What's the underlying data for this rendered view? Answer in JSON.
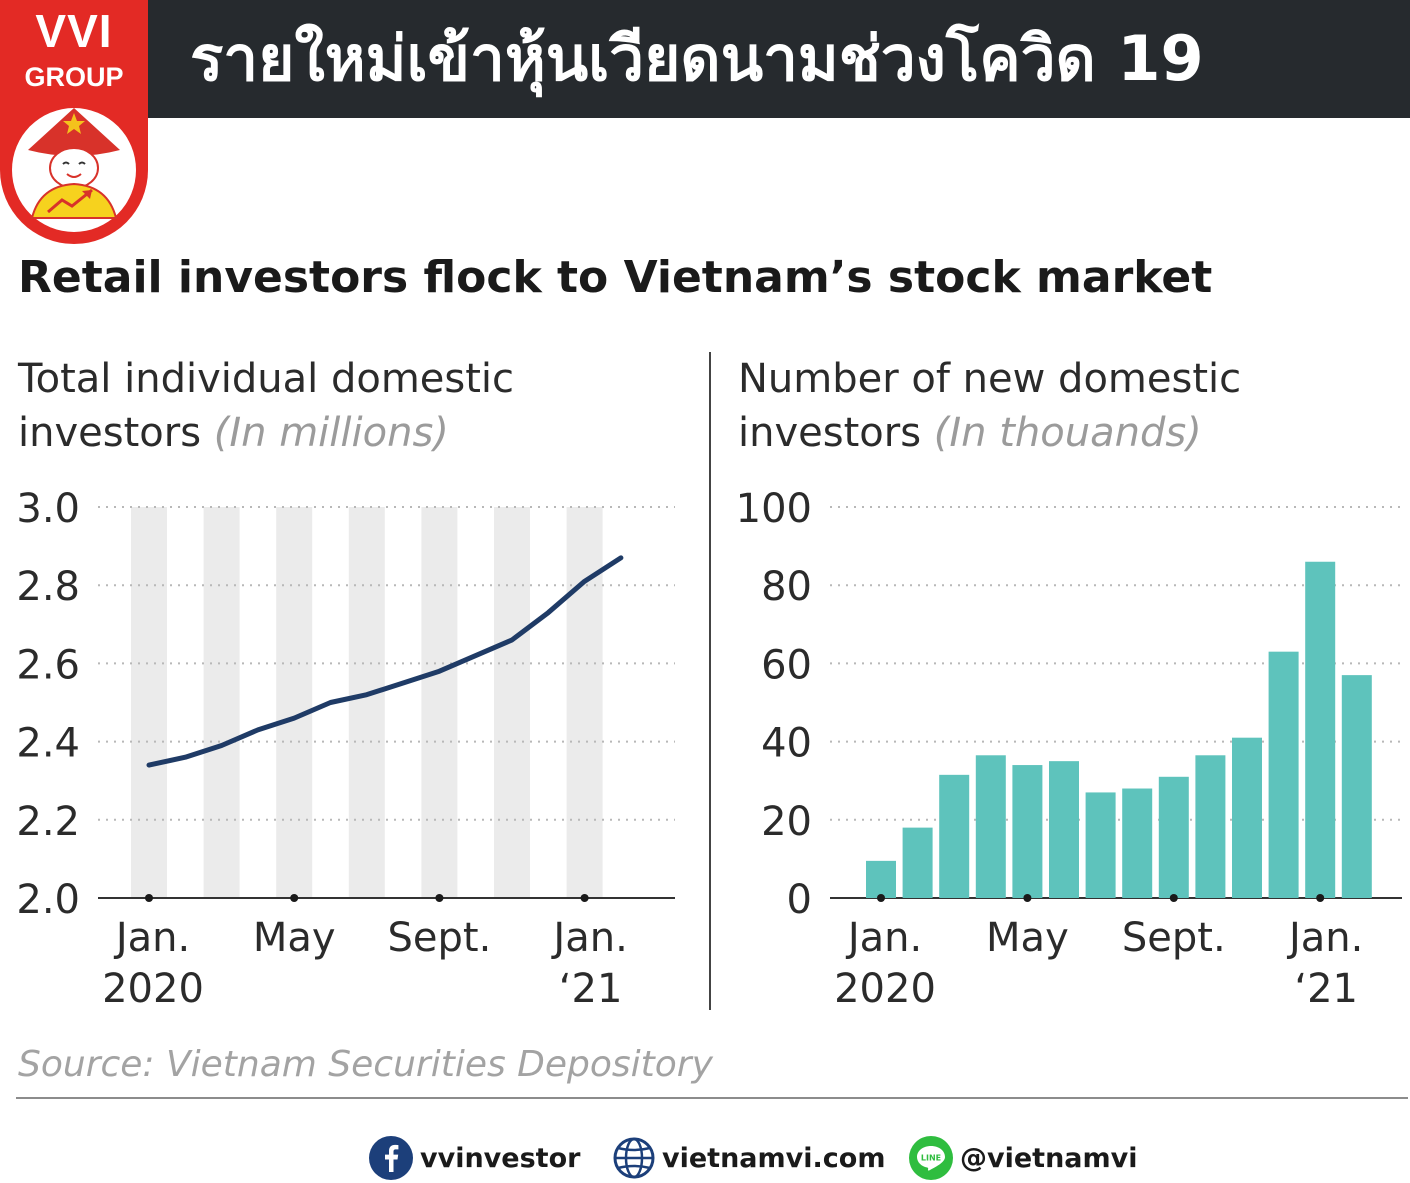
{
  "banner": {
    "title": "รายใหม่เข้าหุ้นเวียดนามช่วงโควิด 19"
  },
  "logo": {
    "line1": "VVI",
    "line2": "GROUP"
  },
  "headline": "Retail investors flock to Vietnam’s stock market",
  "source": "Source: Vietnam Securities Depository",
  "footer": {
    "facebook": "vvinvestor",
    "website": "vietnamvi.com",
    "line": "@vietnamvi"
  },
  "colors": {
    "banner": "#262a2e",
    "line": "#1f3b66",
    "bars": "#5ec3bc",
    "bands": "#ebebeb",
    "logo_red": "#e32a25"
  },
  "chart_data": [
    {
      "type": "line",
      "title": "Total individual domestic investors",
      "title_line1": "Total individual domestic",
      "title_line2": "investors",
      "unit": "(In millions)",
      "x": [
        "2020-01",
        "2020-02",
        "2020-03",
        "2020-04",
        "2020-05",
        "2020-06",
        "2020-07",
        "2020-08",
        "2020-09",
        "2020-10",
        "2020-11",
        "2020-12",
        "2021-01",
        "2021-02"
      ],
      "values": [
        2.34,
        2.36,
        2.39,
        2.43,
        2.46,
        2.5,
        2.52,
        2.55,
        2.58,
        2.62,
        2.66,
        2.73,
        2.81,
        2.87
      ],
      "ylim": [
        2.0,
        3.0
      ],
      "yticks": [
        "3.0",
        "2.8",
        "2.6",
        "2.4",
        "2.2",
        "2.0"
      ],
      "xtick_labels": [
        {
          "line1": "Jan.",
          "line2": "2020"
        },
        {
          "line1": "May",
          "line2": ""
        },
        {
          "line1": "Sept.",
          "line2": ""
        },
        {
          "line1": "Jan.",
          "line2": "‘21"
        }
      ],
      "grid": true,
      "alternating_bands": true
    },
    {
      "type": "bar",
      "title": "Number of new domestic investors",
      "title_line1": "Number of new domestic",
      "title_line2": "investors",
      "unit": "(In thouands)",
      "x": [
        "2020-01",
        "2020-02",
        "2020-03",
        "2020-04",
        "2020-05",
        "2020-06",
        "2020-07",
        "2020-08",
        "2020-09",
        "2020-10",
        "2020-11",
        "2020-12",
        "2021-01",
        "2021-02"
      ],
      "values": [
        9.5,
        18,
        31.5,
        36.5,
        34,
        35,
        27,
        28,
        31,
        36.5,
        41,
        63,
        86,
        57
      ],
      "ylim": [
        0,
        100
      ],
      "yticks": [
        "100",
        "80",
        "60",
        "40",
        "20",
        "0"
      ],
      "xtick_labels": [
        {
          "line1": "Jan.",
          "line2": "2020"
        },
        {
          "line1": "May",
          "line2": ""
        },
        {
          "line1": "Sept.",
          "line2": ""
        },
        {
          "line1": "Jan.",
          "line2": "‘21"
        }
      ],
      "grid": true
    }
  ]
}
